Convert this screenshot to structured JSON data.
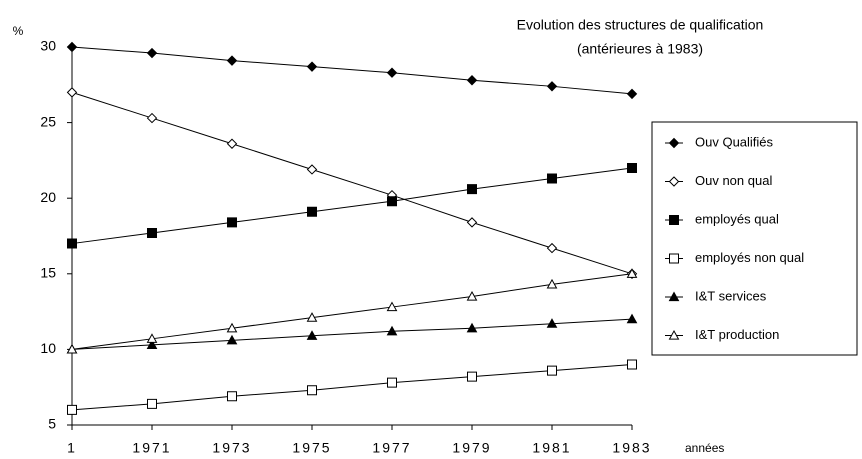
{
  "chart_data": {
    "type": "line",
    "title": "Evolution des structures de qualification",
    "subtitle": "(antérieures à 1983)",
    "y_label": "%",
    "x_label": "années",
    "categories": [
      "1",
      "1971",
      "1973",
      "1975",
      "1977",
      "1979",
      "1981",
      "1983"
    ],
    "ylim": [
      5,
      30
    ],
    "yticks": [
      5,
      10,
      15,
      20,
      25,
      30
    ],
    "series": [
      {
        "name": "Ouv Qualifiés",
        "color": "#000000",
        "marker": "diamond-filled",
        "values": [
          30,
          29.6,
          29.1,
          28.7,
          28.3,
          27.8,
          27.4,
          26.9
        ]
      },
      {
        "name": "Ouv non qual",
        "color": "#000000",
        "marker": "diamond-open",
        "values": [
          27,
          25.3,
          23.6,
          21.9,
          20.2,
          18.4,
          16.7,
          15
        ]
      },
      {
        "name": "employés qual",
        "color": "#000000",
        "marker": "square-filled",
        "values": [
          17,
          17.7,
          18.4,
          19.1,
          19.8,
          20.6,
          21.3,
          22
        ]
      },
      {
        "name": "employés non qual",
        "color": "#000000",
        "marker": "square-open",
        "values": [
          6,
          6.4,
          6.9,
          7.3,
          7.8,
          8.2,
          8.6,
          9
        ]
      },
      {
        "name": "I&T services",
        "color": "#000000",
        "marker": "triangle-filled",
        "values": [
          10,
          10.3,
          10.6,
          10.9,
          11.2,
          11.4,
          11.7,
          12
        ]
      },
      {
        "name": "I&T production",
        "color": "#000000",
        "marker": "triangle-open",
        "values": [
          10,
          10.7,
          11.4,
          12.1,
          12.8,
          13.5,
          14.3,
          15
        ]
      }
    ]
  }
}
